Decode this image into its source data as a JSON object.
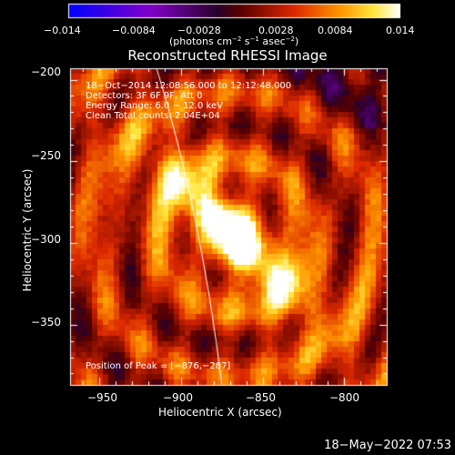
{
  "title": "Reconstructed RHESSI Image",
  "colorbar": {
    "min": -0.014,
    "max": 0.014,
    "ticks": [
      "−0.014",
      "−0.0084",
      "−0.0028",
      "0.0028",
      "0.0084",
      "0.014"
    ],
    "units_prefix": "(photons cm",
    "units_exp1": "−2",
    "units_mid": " s",
    "units_exp2": "−1",
    "units_mid2": " asec",
    "units_exp3": "−2",
    "units_suffix": ")"
  },
  "x_axis": {
    "label": "Heliocentric X (arcsec)",
    "range": [
      -968,
      -774
    ],
    "ticks": [
      "−950",
      "−900",
      "−850",
      "−800"
    ],
    "tick_values": [
      -950,
      -900,
      -850,
      -800
    ]
  },
  "y_axis": {
    "label": "Heliocentric Y (arcsec)",
    "range": [
      -387,
      -193
    ],
    "ticks": [
      "−200",
      "−250",
      "−300",
      "−350"
    ],
    "tick_values": [
      -200,
      -250,
      -300,
      -350
    ]
  },
  "info_lines": [
    "18−Oct−2014 12:08:56.000 to 12:12:48.000",
    "Detectors: 3F 6F 9F, Att 0",
    "Energy Range: 6.0 − 12.0 keV",
    "Clean    Total counts: 2.04E+04"
  ],
  "peak_label": "Position of Peak = [−876,−287]",
  "peak": {
    "x": -876,
    "y": -287
  },
  "footer_date": "18−May−2022 07:53"
}
